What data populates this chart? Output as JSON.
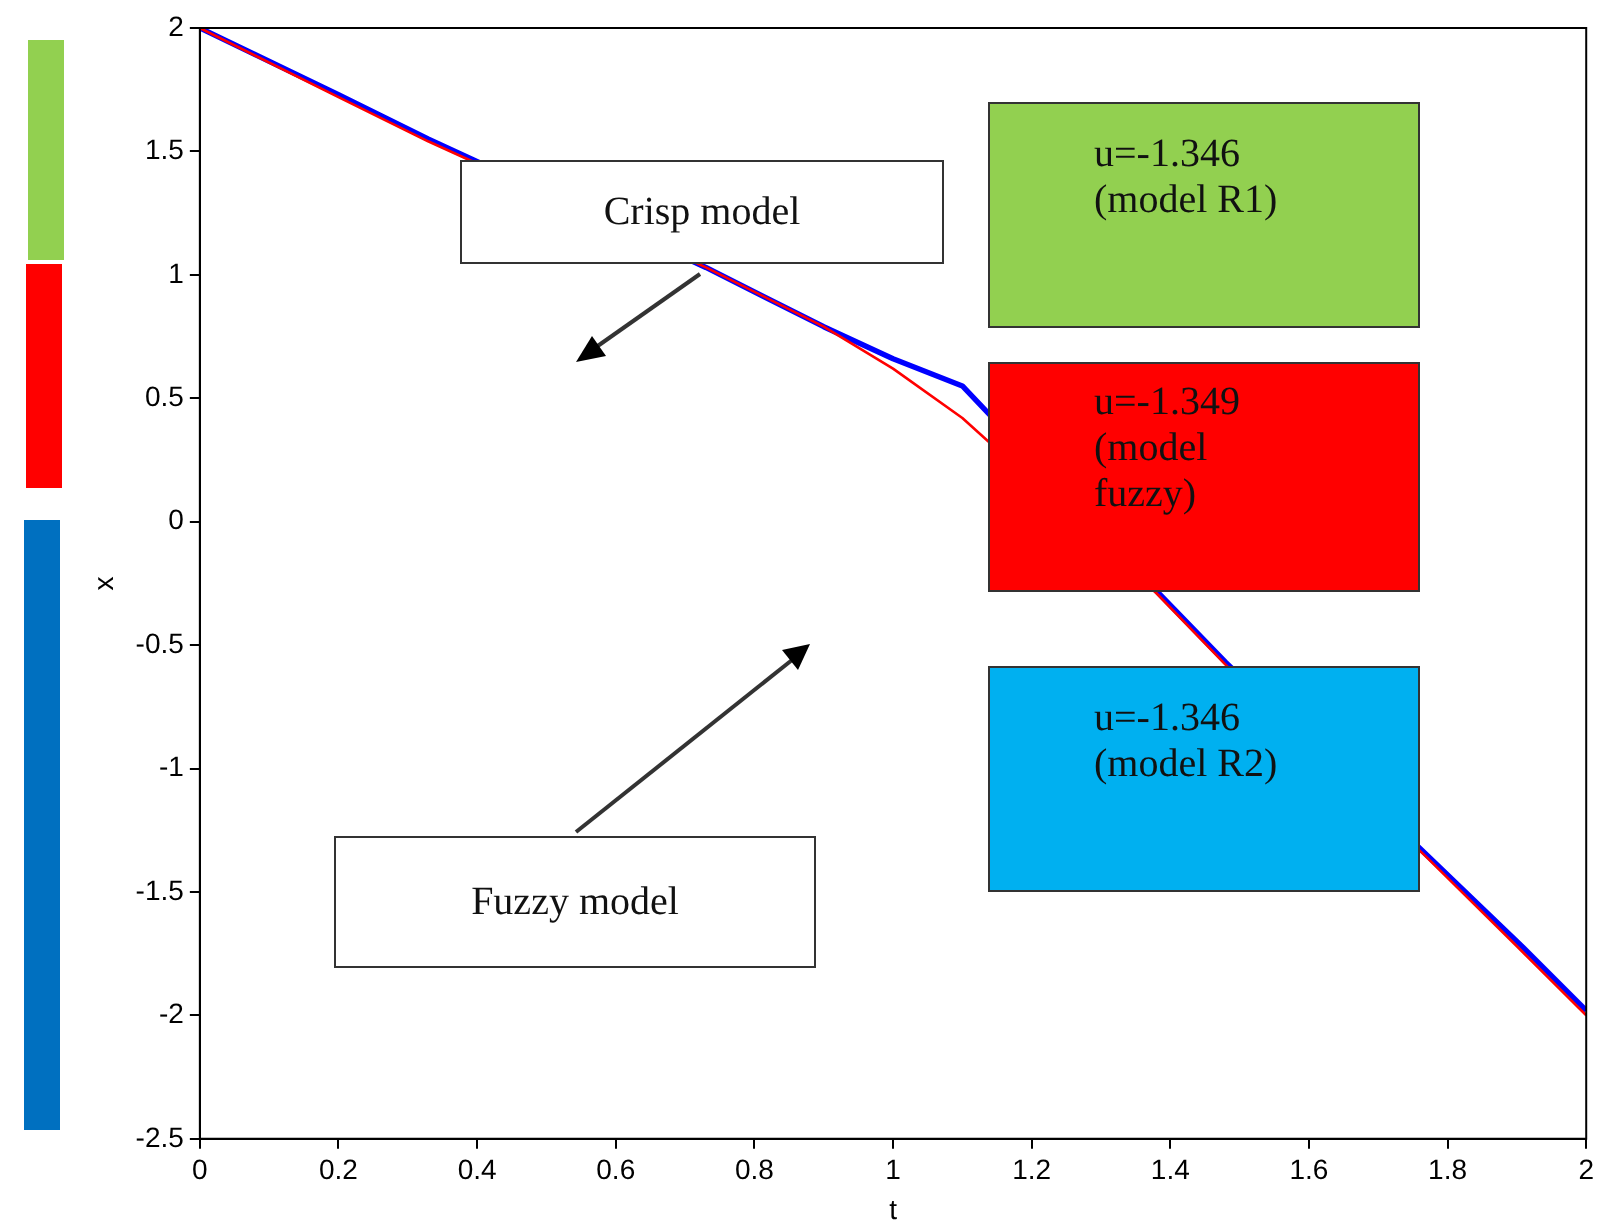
{
  "chart_data": {
    "type": "line",
    "xlabel": "t",
    "ylabel": "x",
    "x": [
      0,
      0.2,
      0.33,
      0.73,
      0.9,
      1.0,
      1.1,
      1.38,
      1.48,
      1.77,
      1.9,
      2
    ],
    "series": [
      {
        "color": "#ff0000",
        "values": [
          2,
          1.72,
          1.54,
          1.03,
          0.79,
          0.62,
          0.42,
          -0.29,
          -0.58,
          -1.36,
          -1.72,
          -2.0
        ]
      },
      {
        "color": "#0000ff",
        "values": [
          2,
          1.73,
          1.55,
          1.03,
          0.79,
          0.66,
          0.55,
          -0.28,
          -0.57,
          -1.35,
          -1.7,
          -1.98
        ]
      }
    ],
    "xlim": [
      0,
      2
    ],
    "ylim": [
      -2.5,
      2
    ],
    "xticks": [
      0,
      0.2,
      0.4,
      0.6,
      0.8,
      1,
      1.2,
      1.4,
      1.6,
      1.8,
      2
    ],
    "yticks": [
      -2.5,
      -2,
      -1.5,
      -1,
      -0.5,
      0,
      0.5,
      1,
      1.5,
      2
    ],
    "annotations": [
      "Crisp model",
      "Fuzzy model",
      "u=-1.346 (model R1)",
      "u=-1.349 (model fuzzy)",
      "u=-1.346 (model R2)"
    ]
  }
}
